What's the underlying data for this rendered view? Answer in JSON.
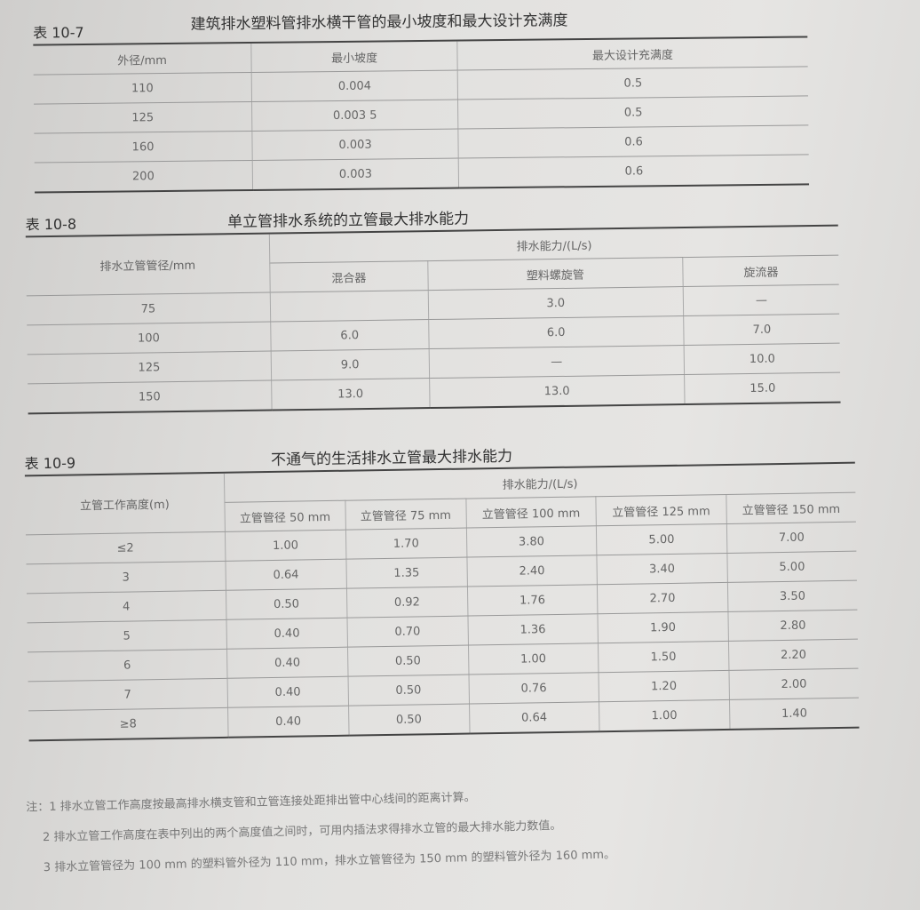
{
  "t7": {
    "num": "表 10-7",
    "title": "建筑排水塑料管排水横干管的最小坡度和最大设计充满度",
    "headers": [
      "外径/mm",
      "最小坡度",
      "最大设计充满度"
    ],
    "rows": [
      [
        "110",
        "0.004",
        "0.5"
      ],
      [
        "125",
        "0.003 5",
        "0.5"
      ],
      [
        "160",
        "0.003",
        "0.6"
      ],
      [
        "200",
        "0.003",
        "0.6"
      ]
    ]
  },
  "t8": {
    "num": "表 10-8",
    "title": "单立管排水系统的立管最大排水能力",
    "h_dia": "排水立管管径/mm",
    "h_cap": "排水能力/(L/s)",
    "sub": [
      "混合器",
      "塑料螺旋管",
      "旋流器"
    ],
    "rows": [
      [
        "75",
        "",
        "3.0",
        "—"
      ],
      [
        "100",
        "6.0",
        "6.0",
        "7.0"
      ],
      [
        "125",
        "9.0",
        "—",
        "10.0"
      ],
      [
        "150",
        "13.0",
        "13.0",
        "15.0"
      ]
    ]
  },
  "t9": {
    "num": "表 10-9",
    "title": "不通气的生活排水立管最大排水能力",
    "h_height": "立管工作高度(m)",
    "h_cap": "排水能力/(L/s)",
    "sub": [
      "立管管径 50 mm",
      "立管管径 75 mm",
      "立管管径 100 mm",
      "立管管径 125 mm",
      "立管管径 150 mm"
    ],
    "rows": [
      [
        "≤2",
        "1.00",
        "1.70",
        "3.80",
        "5.00",
        "7.00"
      ],
      [
        "3",
        "0.64",
        "1.35",
        "2.40",
        "3.40",
        "5.00"
      ],
      [
        "4",
        "0.50",
        "0.92",
        "1.76",
        "2.70",
        "3.50"
      ],
      [
        "5",
        "0.40",
        "0.70",
        "1.36",
        "1.90",
        "2.80"
      ],
      [
        "6",
        "0.40",
        "0.50",
        "1.00",
        "1.50",
        "2.20"
      ],
      [
        "7",
        "0.40",
        "0.50",
        "0.76",
        "1.20",
        "2.00"
      ],
      [
        "≥8",
        "0.40",
        "0.50",
        "0.64",
        "1.00",
        "1.40"
      ]
    ]
  },
  "notes": [
    "注：1 排水立管工作高度按最高排水横支管和立管连接处距排出管中心线间的距离计算。",
    "2 排水立管工作高度在表中列出的两个高度值之间时，可用内插法求得排水立管的最大排水能力数值。",
    "3 排水立管管径为 100 mm 的塑料管外径为 110 mm，排水立管管径为 150 mm 的塑料管外径为 160 mm。"
  ]
}
